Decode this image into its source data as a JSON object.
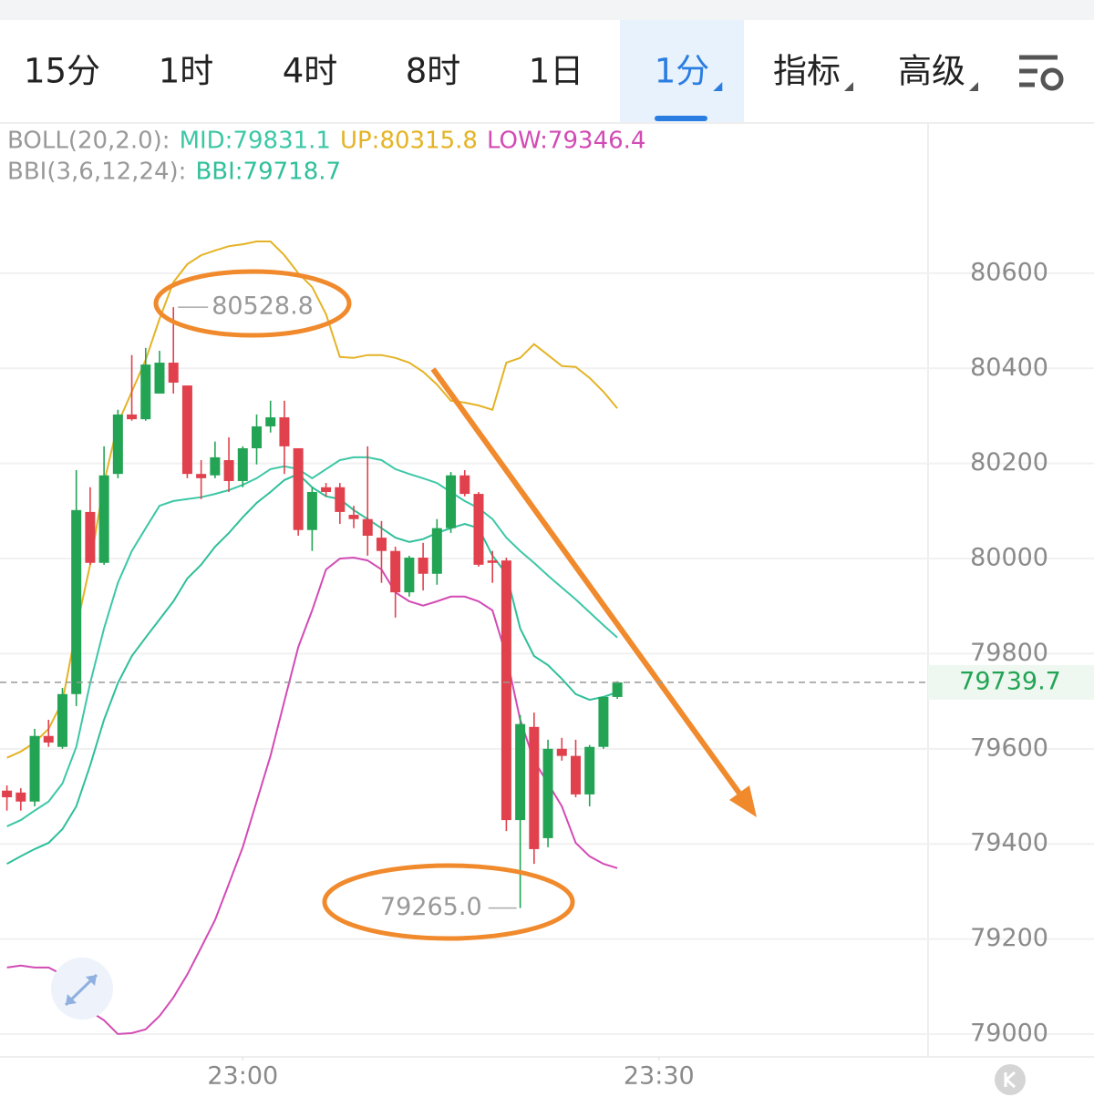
{
  "tabs": [
    "15分",
    "1时",
    "4时",
    "8时",
    "1日",
    "1分",
    "指标",
    "高级"
  ],
  "selected_tab": 5,
  "indicators": {
    "boll": "BOLL(20,2.0):",
    "bbi": "BBI(3,6,12,24):"
  },
  "chart_data": {
    "type": "candlestick",
    "up_color": "#23a455",
    "down_color": "#e0414d",
    "x": [
      1363,
      1364,
      1365,
      1366,
      1367,
      1368,
      1369,
      1370,
      1371,
      1372,
      1373,
      1374,
      1375,
      1376,
      1377,
      1378,
      1379,
      1380,
      1381,
      1382,
      1383,
      1384,
      1385,
      1386,
      1387,
      1388,
      1389,
      1390,
      1391,
      1392,
      1393,
      1394,
      1395,
      1396,
      1397,
      1398,
      1399,
      1400,
      1401,
      1402,
      1403,
      1404,
      1405,
      1406,
      1407
    ],
    "open": [
      79512,
      79508,
      79489,
      79627,
      79604,
      79715,
      80098,
      79991,
      80178,
      80303,
      80293,
      80347,
      80412,
      80364,
      80178,
      80175,
      80207,
      80163,
      80232,
      80278,
      80297,
      80232,
      80060,
      80150,
      80150,
      80092,
      80083,
      80044,
      80016,
      79929,
      80002,
      79968,
      80064,
      80175,
      80136,
      79996,
      79996,
      79450,
      79646,
      79412,
      79600,
      79585,
      79504,
      79604,
      79709
    ],
    "high": [
      79523,
      79517,
      79642,
      79661,
      79728,
      80186,
      80150,
      80236,
      80313,
      80428,
      80443,
      80437,
      80528.8,
      80364,
      80207,
      80246,
      80255,
      80236,
      80303,
      80332,
      80332,
      80232,
      80150,
      80159,
      80159,
      80111,
      80236,
      80079,
      80025,
      80006,
      80033,
      80083,
      80182,
      80186,
      80140,
      80016,
      80002,
      79671,
      79676,
      79619,
      79623,
      79619,
      79608,
      79709,
      79742
    ],
    "low": [
      79470,
      79470,
      79479,
      79604,
      79600,
      79690,
      79987,
      79987,
      80169,
      80290,
      80290,
      80347,
      80347,
      80169,
      80125,
      80169,
      80140,
      80150,
      80198,
      80265,
      80178,
      80048,
      80016,
      80131,
      80073,
      80064,
      80006,
      79949,
      79876,
      79920,
      79933,
      79945,
      80054,
      80131,
      79983,
      79949,
      79427,
      79265,
      79358,
      79393,
      79575,
      79498,
      79479,
      79600,
      79705
    ],
    "close": [
      79498,
      79489,
      79627,
      79613,
      79715,
      80102,
      79991,
      80175,
      80303,
      80293,
      80408,
      80412,
      80370,
      80178,
      80169,
      80213,
      80163,
      80232,
      80278,
      80297,
      80236,
      80060,
      80140,
      80140,
      80098,
      80083,
      80048,
      80016,
      79929,
      80002,
      79968,
      80064,
      80175,
      80136,
      79987,
      79991,
      79450,
      79652,
      79389,
      79600,
      79585,
      79504,
      79604,
      79709,
      79739.7
    ],
    "lines": [
      {
        "label": "MID:79831.1",
        "color": "#3cc7a6",
        "values": [
          79437,
          79450,
          79470,
          79489,
          79527,
          79604,
          79738,
          79853,
          79949,
          80016,
          80064,
          80111,
          80121,
          80125,
          80129,
          80136,
          80144,
          80155,
          80169,
          80188,
          80194,
          80188,
          80169,
          80188,
          80207,
          80213,
          80213,
          80207,
          80188,
          80178,
          80169,
          80159,
          80140,
          80121,
          80106,
          80083,
          80044,
          80016,
          79991,
          79964,
          79939,
          79914,
          79887,
          79860,
          79834
        ]
      },
      {
        "label": "UP:80315.8",
        "color": "#e4b325",
        "values": [
          79581,
          79594,
          79613,
          79642,
          79699,
          79853,
          79987,
          80159,
          80284,
          80351,
          80418,
          80504,
          80581,
          80619,
          80638,
          80648,
          80657,
          80661,
          80667,
          80667,
          80638,
          80600,
          80571,
          80514,
          80424,
          80422,
          80428,
          80428,
          80422,
          80412,
          80393,
          80366,
          80332,
          80328,
          80322,
          80313,
          80412,
          80422,
          80451,
          80428,
          80405,
          80403,
          80380,
          80351,
          80316
        ]
      },
      {
        "label": "LOW:79346.4",
        "color": "#d24bb5",
        "values": [
          79140,
          79144,
          79140,
          79140,
          79125,
          79058,
          79048,
          79029,
          79000,
          79002,
          79010,
          79038,
          79077,
          79125,
          79182,
          79240,
          79316,
          79393,
          79489,
          79585,
          79700,
          79814,
          79891,
          79977,
          80000,
          80002,
          79996,
          79977,
          79929,
          79910,
          79901,
          79910,
          79920,
          79920,
          79910,
          79891,
          79795,
          79661,
          79575,
          79527,
          79479,
          79402,
          79374,
          79358,
          79349
        ]
      },
      {
        "label": "BBI:79718.7",
        "color": "#2fbf9a",
        "values": [
          79358,
          79374,
          79389,
          79402,
          79431,
          79479,
          79565,
          79661,
          79738,
          79795,
          79834,
          79872,
          79910,
          79958,
          79987,
          80025,
          80054,
          80087,
          80117,
          80140,
          80165,
          80178,
          80150,
          80131,
          80125,
          80102,
          80083,
          80064,
          80044,
          80035,
          80041,
          80054,
          80064,
          80073,
          80064,
          80006,
          79968,
          79853,
          79795,
          79776,
          79747,
          79715,
          79703,
          79709,
          79719
        ]
      }
    ],
    "annotations": [
      "80528.8",
      "79265.0"
    ],
    "xlim": [
      1362.5,
      1429.4
    ],
    "xticks": [
      {
        "value": 1380,
        "label": "23:00"
      },
      {
        "value": 1410,
        "label": "23:30"
      }
    ],
    "ylim": [
      78952,
      80916
    ],
    "yticks": [
      79000,
      79200,
      79400,
      79600,
      79800,
      80000,
      80200,
      80400,
      80600
    ],
    "grid": true
  }
}
